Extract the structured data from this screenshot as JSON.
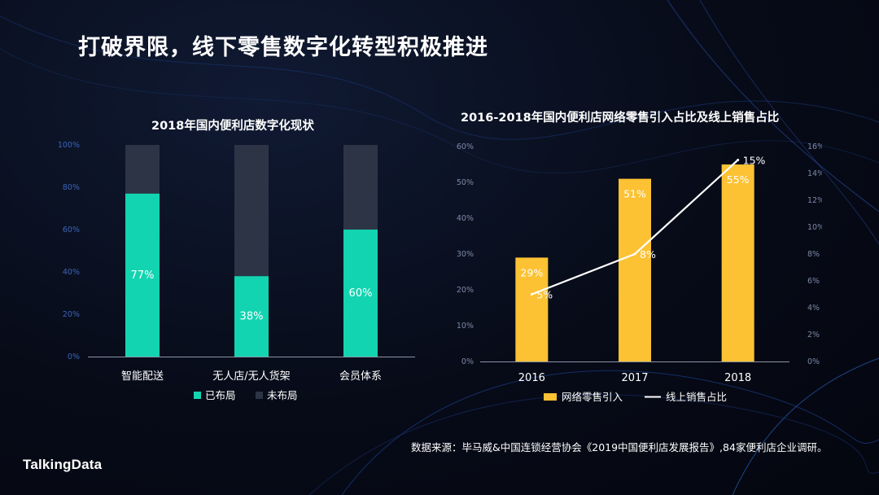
{
  "slide": {
    "title": "打破界限，线下零售数字化转型积极推进",
    "source": "数据来源：毕马威&中国连锁经营协会《2019中国便利店发展报告》,84家便利店企业调研。",
    "logo": "TalkingData"
  },
  "colors": {
    "background": "#070b18",
    "teal": "#12d4b0",
    "dark_bar": "#2c3446",
    "yellow": "#fcc233",
    "line_white": "#ffffff",
    "axis_tick_left": "#3b64b8"
  },
  "chart_data": [
    {
      "type": "bar",
      "stacked": true,
      "title": "2018年国内便利店数字化现状",
      "categories": [
        "智能配送",
        "无人店/无人货架",
        "会员体系"
      ],
      "series": [
        {
          "name": "已布局",
          "values": [
            77,
            38,
            60
          ]
        },
        {
          "name": "未布局",
          "values": [
            23,
            62,
            40
          ]
        }
      ],
      "data_labels": [
        "77%",
        "38%",
        "60%"
      ],
      "yticks": [
        "0%",
        "20%",
        "40%",
        "60%",
        "80%",
        "100%"
      ],
      "ylim": [
        0,
        100
      ],
      "legend": [
        "已布局",
        "未布局"
      ],
      "legend_position": "bottom",
      "grid": false
    },
    {
      "type": "bar+line",
      "title": "2016-2018年国内便利店网络零售引入占比及线上销售占比",
      "categories": [
        "2016",
        "2017",
        "2018"
      ],
      "series": [
        {
          "name": "网络零售引入",
          "type": "bar",
          "axis": "left",
          "values": [
            29,
            51,
            55
          ],
          "labels": [
            "29%",
            "51%",
            "55%"
          ]
        },
        {
          "name": "线上销售占比",
          "type": "line",
          "axis": "right",
          "values": [
            5,
            8,
            15
          ],
          "labels": [
            "5%",
            "8%",
            "15%"
          ]
        }
      ],
      "yticks_left": [
        "0%",
        "10%",
        "20%",
        "30%",
        "40%",
        "50%",
        "60%"
      ],
      "ylim_left": [
        0,
        60
      ],
      "yticks_right": [
        "0%",
        "2%",
        "4%",
        "6%",
        "8%",
        "10%",
        "12%",
        "14%",
        "16%"
      ],
      "ylim_right": [
        0,
        16
      ],
      "legend": [
        "网络零售引入",
        "线上销售占比"
      ],
      "legend_position": "bottom",
      "grid": false
    }
  ]
}
